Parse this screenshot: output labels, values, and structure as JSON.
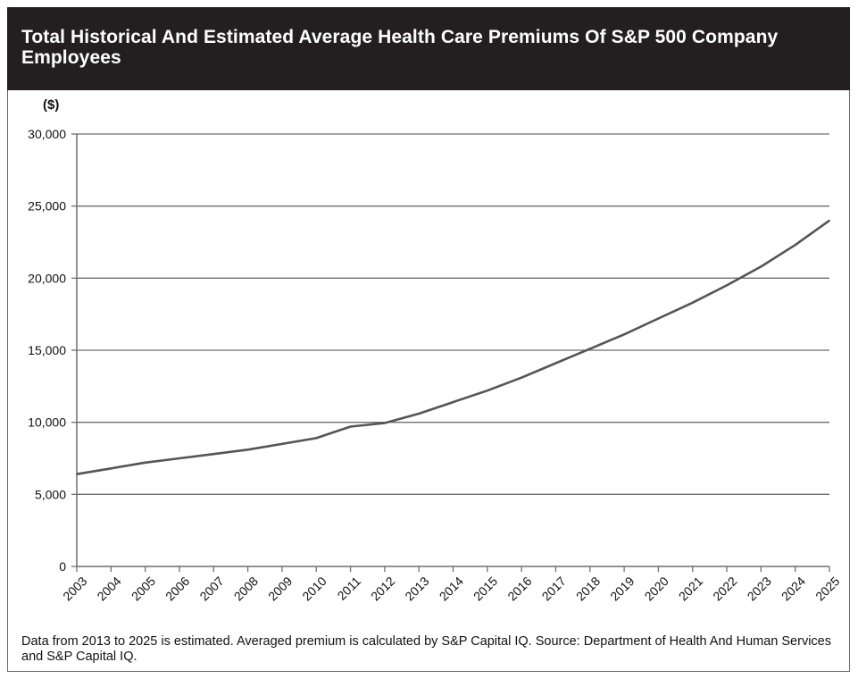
{
  "chart_data": {
    "type": "line",
    "title": "Total Historical And Estimated Average Health Care Premiums Of S&P 500 Company Employees",
    "ylabel": "($)",
    "xlabel": "",
    "ylim": [
      0,
      30000
    ],
    "yticks": [
      0,
      5000,
      10000,
      15000,
      20000,
      25000,
      30000
    ],
    "ytick_labels": [
      "0",
      "5,000",
      "10,000",
      "15,000",
      "20,000",
      "25,000",
      "30,000"
    ],
    "x": [
      "2003",
      "2004",
      "2005",
      "2006",
      "2007",
      "2008",
      "2009",
      "2010",
      "2011",
      "2012",
      "2013",
      "2014",
      "2015",
      "2016",
      "2017",
      "2018",
      "2019",
      "2020",
      "2021",
      "2022",
      "2023",
      "2024",
      "2025"
    ],
    "series": [
      {
        "values": [
          6400,
          6800,
          7200,
          7500,
          7800,
          8100,
          8500,
          8900,
          9700,
          9950,
          10600,
          11400,
          12200,
          13100,
          14100,
          15100,
          16100,
          17200,
          18300,
          19500,
          20800,
          22300,
          24000
        ]
      }
    ],
    "grid": true,
    "line_color": "#555555"
  },
  "footnote": "Data from 2013 to 2025 is estimated. Averaged premium is  calculated by S&P Capital IQ. Source: Department of Health And Human Services and S&P Capital IQ."
}
